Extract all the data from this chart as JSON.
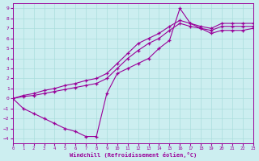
{
  "bg_color": "#cceef0",
  "line_color": "#990099",
  "grid_color": "#aadddd",
  "xlabel": "Windchill (Refroidissement éolien,°C)",
  "xlim": [
    0,
    23
  ],
  "ylim": [
    -4.5,
    9.5
  ],
  "xticks": [
    0,
    1,
    2,
    3,
    4,
    5,
    6,
    7,
    8,
    9,
    10,
    11,
    12,
    13,
    14,
    15,
    16,
    17,
    18,
    19,
    20,
    21,
    22,
    23
  ],
  "yticks": [
    -4,
    -3,
    -2,
    -1,
    0,
    1,
    2,
    3,
    4,
    5,
    6,
    7,
    8,
    9
  ],
  "curve_bottom_x": [
    0,
    1,
    2,
    3,
    4,
    5,
    6,
    7,
    8,
    9,
    10,
    11,
    12,
    13,
    14,
    15,
    16,
    17,
    18,
    19,
    20,
    21,
    22,
    23
  ],
  "curve_bottom_y": [
    0.0,
    -1.0,
    -1.5,
    -2.0,
    -2.5,
    -3.0,
    -3.3,
    -3.8,
    -3.8,
    0.5,
    2.5,
    3.0,
    3.5,
    4.0,
    5.0,
    5.8,
    9.0,
    7.5,
    7.0,
    6.5,
    6.8,
    6.8,
    6.8,
    7.0
  ],
  "curve_top_x": [
    0,
    1,
    2,
    3,
    4,
    5,
    6,
    7,
    8,
    9,
    10,
    11,
    12,
    13,
    14,
    15,
    16,
    17,
    18,
    19,
    20,
    21,
    22,
    23
  ],
  "curve_top_y": [
    0.0,
    0.3,
    0.5,
    0.8,
    1.0,
    1.3,
    1.5,
    1.8,
    2.0,
    2.5,
    3.5,
    4.5,
    5.5,
    6.0,
    6.5,
    7.2,
    7.8,
    7.5,
    7.2,
    7.0,
    7.5,
    7.5,
    7.5,
    7.5
  ],
  "curve_mid_x": [
    0,
    1,
    2,
    3,
    4,
    5,
    6,
    7,
    8,
    9,
    10,
    11,
    12,
    13,
    14,
    15,
    16,
    17,
    18,
    19,
    20,
    21,
    22,
    23
  ],
  "curve_mid_y": [
    0.0,
    0.2,
    0.3,
    0.5,
    0.7,
    0.9,
    1.1,
    1.3,
    1.5,
    2.0,
    3.0,
    4.0,
    4.8,
    5.5,
    6.0,
    6.8,
    7.5,
    7.2,
    7.0,
    6.8,
    7.2,
    7.2,
    7.2,
    7.2
  ]
}
